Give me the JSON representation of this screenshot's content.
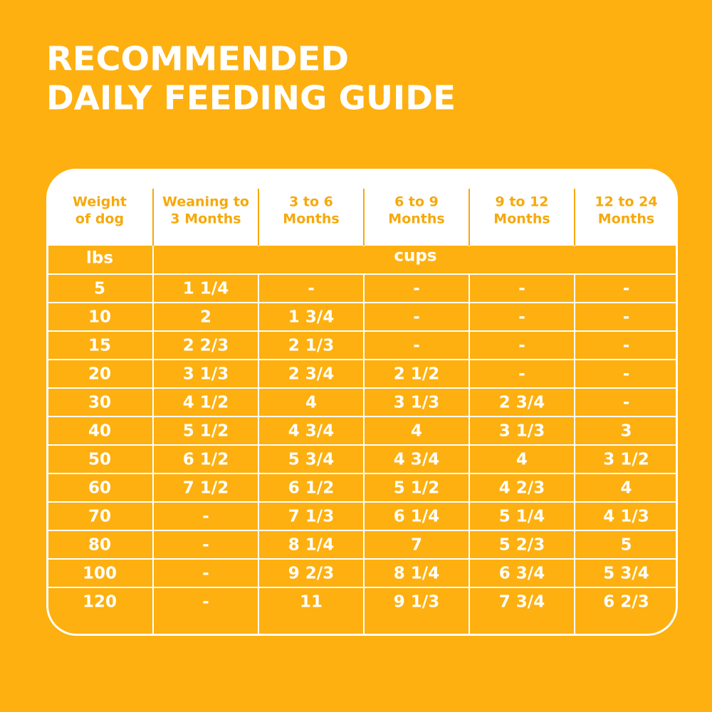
{
  "title": [
    "RECOMMENDED",
    "DAILY FEEDING GUIDE"
  ],
  "headers": [
    [
      "Weight",
      "of dog"
    ],
    [
      "Weaning to",
      "3 Months"
    ],
    [
      "3 to 6",
      "Months"
    ],
    [
      "6 to 9",
      "Months"
    ],
    [
      "9 to 12",
      "Months"
    ],
    [
      "12 to 24",
      "Months"
    ]
  ],
  "units": [
    "lbs",
    "cups"
  ],
  "rows": [
    [
      "5",
      "1 1/4",
      "-",
      "-",
      "-",
      "-"
    ],
    [
      "10",
      "2",
      "1 3/4",
      "-",
      "-",
      "-"
    ],
    [
      "15",
      "2 2/3",
      "2 1/3",
      "-",
      "-",
      "-"
    ],
    [
      "20",
      "3 1/3",
      "2 3/4",
      "2 1/2",
      "-",
      "-"
    ],
    [
      "30",
      "4 1/2",
      "4",
      "3 1/3",
      "2 3/4",
      "-"
    ],
    [
      "40",
      "5 1/2",
      "4 3/4",
      "4",
      "3 1/3",
      "3"
    ],
    [
      "50",
      "6 1/2",
      "5 3/4",
      "4 3/4",
      "4",
      "3 1/2"
    ],
    [
      "60",
      "7 1/2",
      "6 1/2",
      "5 1/2",
      "4 2/3",
      "4"
    ],
    [
      "70",
      "-",
      "7 1/3",
      "6 1/4",
      "5 1/4",
      "4 1/3"
    ],
    [
      "80",
      "-",
      "8 1/4",
      "7",
      "5 2/3",
      "5"
    ],
    [
      "100",
      "-",
      "9 2/3",
      "8 1/4",
      "6 3/4",
      "5 3/4"
    ],
    [
      "120",
      "-",
      "11",
      "9 1/3",
      "7 3/4",
      "6 2/3"
    ]
  ]
}
